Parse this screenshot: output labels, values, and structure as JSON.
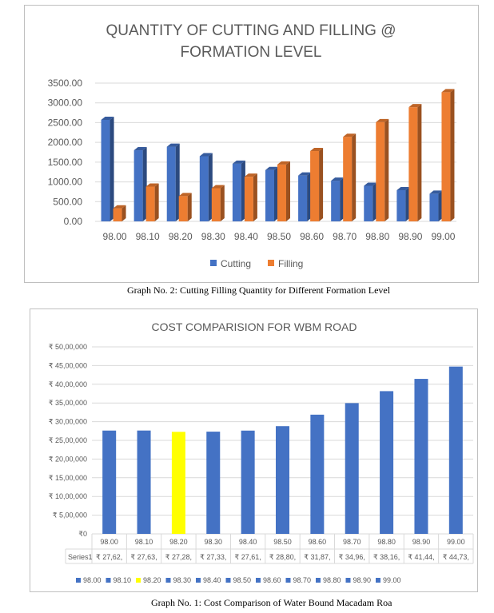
{
  "charts": {
    "chart1": {
      "caption": "Graph No. 2: Cutting Filling Quantity for Different Formation Level"
    },
    "chart2": {
      "caption": "Graph No. 1: Cost Comparison of Water Bound Macadam Roa",
      "table_row_label": "Series1"
    }
  },
  "chart_data": [
    {
      "type": "bar",
      "title": "QUANTITY OF CUTTING AND FILLING @ FORMATION LEVEL",
      "title_lines": [
        "QUANTITY OF CUTTING AND FILLING @",
        "FORMATION LEVEL"
      ],
      "xlabel": "",
      "ylabel": "",
      "categories": [
        "98.00",
        "98.10",
        "98.20",
        "98.30",
        "98.40",
        "98.50",
        "98.60",
        "98.70",
        "98.80",
        "98.90",
        "99.00"
      ],
      "series": [
        {
          "name": "Cutting",
          "color": "#4472c4",
          "values": [
            2570,
            1800,
            1890,
            1650,
            1460,
            1300,
            1160,
            1030,
            900,
            790,
            700
          ]
        },
        {
          "name": "Filling",
          "color": "#ed7d31",
          "values": [
            330,
            880,
            640,
            840,
            1130,
            1440,
            1780,
            2140,
            2510,
            2890,
            3270
          ]
        }
      ],
      "yticks": [
        "0.00",
        "500.00",
        "1000.00",
        "1500.00",
        "2000.00",
        "2500.00",
        "3000.00",
        "3500.00"
      ],
      "ylim": [
        0,
        3500
      ],
      "grid": true,
      "legend": "bottom",
      "style": "3d-clustered-column"
    },
    {
      "type": "bar",
      "title": "COST COMPARISION FOR WBM ROAD",
      "xlabel": "",
      "ylabel": "",
      "categories": [
        "98.00",
        "98.10",
        "98.20",
        "98.30",
        "98.40",
        "98.50",
        "98.60",
        "98.70",
        "98.80",
        "98.90",
        "99.00"
      ],
      "series": [
        {
          "name": "Series1",
          "values": [
            2762000,
            2763000,
            2728000,
            2733000,
            2761000,
            2880000,
            3187000,
            3496000,
            3816000,
            4144000,
            4473000
          ]
        }
      ],
      "point_colors": [
        "#4472c4",
        "#4472c4",
        "#ffff00",
        "#4472c4",
        "#4472c4",
        "#4472c4",
        "#4472c4",
        "#4472c4",
        "#4472c4",
        "#4472c4",
        "#4472c4"
      ],
      "table_values": [
        "₹ 27,62,",
        "₹ 27,63,",
        "₹ 27,28,",
        "₹ 27,33,",
        "₹ 27,61,",
        "₹ 28,80,",
        "₹ 31,87,",
        "₹ 34,96,",
        "₹ 38,16,",
        "₹ 41,44,",
        "₹ 44,73,"
      ],
      "yticks": [
        "₹0",
        "₹ 5,00,000",
        "₹ 10,00,000",
        "₹ 15,00,000",
        "₹ 20,00,000",
        "₹ 25,00,000",
        "₹ 30,00,000",
        "₹ 35,00,000",
        "₹ 40,00,000",
        "₹ 45,00,000",
        "₹ 50,00,000"
      ],
      "ylim": [
        0,
        5000000
      ],
      "grid": true,
      "legend": "bottom",
      "legend_entries": [
        "98.00",
        "98.10",
        "98.20",
        "98.30",
        "98.40",
        "98.50",
        "98.60",
        "98.70",
        "98.80",
        "98.90",
        "99.00"
      ]
    }
  ]
}
